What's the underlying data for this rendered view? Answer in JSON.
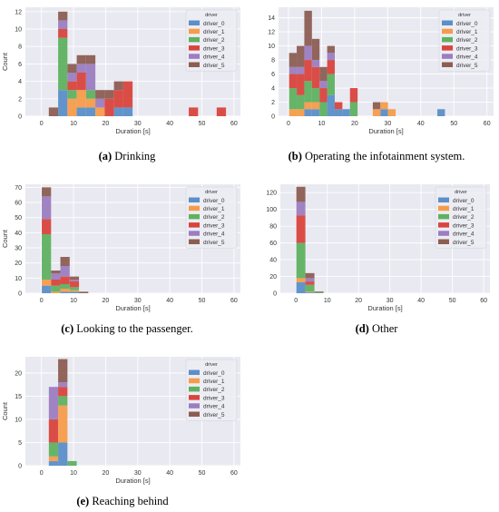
{
  "colors": {
    "driver_0": "#5b8fc8",
    "driver_1": "#f59c4a",
    "driver_2": "#5fb160",
    "driver_3": "#d9443c",
    "driver_4": "#9c7dc0",
    "driver_5": "#8c5e52",
    "plot_background": "#e9e9f1",
    "grid": "#ffffff"
  },
  "legend_title": "driver",
  "series_names": [
    "driver_0",
    "driver_1",
    "driver_2",
    "driver_3",
    "driver_4",
    "driver_5"
  ],
  "captions": [
    {
      "label": "(a)",
      "text": " Drinking"
    },
    {
      "label": "(b)",
      "text": " Operating the infotainment system."
    },
    {
      "label": "(c)",
      "text": " Looking to the passenger."
    },
    {
      "label": "(d)",
      "text": " Other"
    },
    {
      "label": "(e)",
      "text": " Reaching behind"
    }
  ],
  "chart_data": [
    {
      "type": "bar",
      "stacked": true,
      "xlabel": "Duration [s]",
      "ylabel": "Count",
      "xlim": [
        -5,
        62
      ],
      "ylim": [
        0,
        12.5
      ],
      "xticks": [
        0,
        10,
        20,
        30,
        40,
        50,
        60
      ],
      "yticks": [
        0,
        2,
        4,
        6,
        8,
        10,
        12
      ],
      "grid": true,
      "legend": "top-right",
      "bin_width": 2.9,
      "bin_starts": [
        2.3,
        5.2,
        8.1,
        11.0,
        13.9,
        16.8,
        19.7,
        22.6,
        25.5,
        45.9,
        54.6
      ],
      "series": [
        {
          "name": "driver_0",
          "values": [
            0,
            3,
            0,
            1,
            1,
            0,
            0,
            1,
            1,
            0,
            0
          ]
        },
        {
          "name": "driver_1",
          "values": [
            0,
            0,
            2,
            2,
            1,
            1,
            0,
            0,
            0,
            0,
            0
          ]
        },
        {
          "name": "driver_2",
          "values": [
            0,
            6,
            1,
            0,
            1,
            0,
            0,
            0,
            0,
            0,
            0
          ]
        },
        {
          "name": "driver_3",
          "values": [
            0,
            1,
            1,
            2,
            0,
            0,
            2,
            2,
            3,
            1,
            1
          ]
        },
        {
          "name": "driver_4",
          "values": [
            0,
            1,
            1,
            1,
            3,
            1,
            0,
            0,
            0,
            0,
            0
          ]
        },
        {
          "name": "driver_5",
          "values": [
            1,
            1,
            1,
            1,
            1,
            1,
            1,
            1,
            0,
            0,
            0
          ]
        }
      ]
    },
    {
      "type": "bar",
      "stacked": true,
      "xlabel": "Duration [s]",
      "ylabel": "",
      "xlim": [
        -3,
        62
      ],
      "ylim": [
        0,
        15.5
      ],
      "xticks": [
        0,
        10,
        20,
        30,
        40,
        50,
        60
      ],
      "yticks": [
        0,
        2,
        4,
        6,
        8,
        10,
        12,
        14
      ],
      "grid": true,
      "legend": "top-right",
      "bin_width": 2.3,
      "bin_starts": [
        0.2,
        2.5,
        4.8,
        7.1,
        9.4,
        11.7,
        14.0,
        16.3,
        18.6,
        20.9,
        25.5,
        27.8,
        30.1,
        45.0
      ],
      "series": [
        {
          "name": "driver_0",
          "values": [
            0,
            0,
            1,
            1,
            0,
            3,
            1,
            1,
            0,
            0,
            0,
            1,
            0,
            1
          ]
        },
        {
          "name": "driver_1",
          "values": [
            1,
            1,
            1,
            1,
            0,
            0,
            0,
            0,
            0,
            0,
            1,
            1,
            1,
            0
          ]
        },
        {
          "name": "driver_2",
          "values": [
            3,
            2,
            3,
            2,
            2,
            3,
            0,
            0,
            2,
            0,
            0,
            0,
            0,
            0
          ]
        },
        {
          "name": "driver_3",
          "values": [
            2,
            3,
            3,
            3,
            2,
            2,
            1,
            0,
            2,
            0,
            0,
            0,
            0,
            0
          ]
        },
        {
          "name": "driver_4",
          "values": [
            1,
            1,
            2,
            1,
            1,
            1,
            0,
            0,
            0,
            0,
            0,
            0,
            0,
            0
          ]
        },
        {
          "name": "driver_5",
          "values": [
            2,
            3,
            5,
            3,
            2,
            1,
            0,
            0,
            0,
            0,
            1,
            0,
            0,
            0
          ]
        }
      ]
    },
    {
      "type": "bar",
      "stacked": true,
      "xlabel": "Duration [s]",
      "ylabel": "Count",
      "xlim": [
        -5,
        62
      ],
      "ylim": [
        0,
        72
      ],
      "xticks": [
        0,
        10,
        20,
        30,
        40,
        50,
        60
      ],
      "yticks": [
        0,
        10,
        20,
        30,
        40,
        50,
        60,
        70
      ],
      "grid": true,
      "legend": "top-right",
      "bin_width": 2.9,
      "bin_starts": [
        0.1,
        3.0,
        5.9,
        8.8,
        11.7
      ],
      "series": [
        {
          "name": "driver_0",
          "values": [
            5,
            0,
            1,
            1,
            0
          ]
        },
        {
          "name": "driver_1",
          "values": [
            4,
            1,
            2,
            1,
            0
          ]
        },
        {
          "name": "driver_2",
          "values": [
            30,
            4,
            3,
            2,
            0
          ]
        },
        {
          "name": "driver_3",
          "values": [
            10,
            4,
            5,
            4,
            0
          ]
        },
        {
          "name": "driver_4",
          "values": [
            15,
            4,
            7,
            1,
            0
          ]
        },
        {
          "name": "driver_5",
          "values": [
            6,
            2,
            6,
            2,
            1
          ]
        }
      ]
    },
    {
      "type": "bar",
      "stacked": true,
      "xlabel": "Duration [s]",
      "ylabel": "",
      "xlim": [
        -5,
        62
      ],
      "ylim": [
        0,
        130
      ],
      "xticks": [
        0,
        10,
        20,
        30,
        40,
        50,
        60
      ],
      "yticks": [
        0,
        20,
        40,
        60,
        80,
        100,
        120
      ],
      "grid": true,
      "legend": "top-right",
      "bin_width": 2.9,
      "bin_starts": [
        0.1,
        3.0,
        5.9
      ],
      "series": [
        {
          "name": "driver_0",
          "values": [
            13,
            1,
            0
          ]
        },
        {
          "name": "driver_1",
          "values": [
            5,
            1,
            0
          ]
        },
        {
          "name": "driver_2",
          "values": [
            42,
            8,
            1
          ]
        },
        {
          "name": "driver_3",
          "values": [
            33,
            4,
            0
          ]
        },
        {
          "name": "driver_4",
          "values": [
            16,
            4,
            0
          ]
        },
        {
          "name": "driver_5",
          "values": [
            18,
            6,
            1
          ]
        }
      ]
    },
    {
      "type": "bar",
      "stacked": true,
      "xlabel": "Duration [s]",
      "ylabel": "Count",
      "xlim": [
        -5,
        62
      ],
      "ylim": [
        0,
        23.5
      ],
      "xticks": [
        0,
        10,
        20,
        30,
        40,
        50,
        60
      ],
      "yticks": [
        0,
        5,
        10,
        15,
        20
      ],
      "grid": true,
      "legend": "top-right",
      "bin_width": 2.9,
      "bin_starts": [
        2.3,
        5.2,
        8.1
      ],
      "series": [
        {
          "name": "driver_0",
          "values": [
            1,
            5,
            0
          ]
        },
        {
          "name": "driver_1",
          "values": [
            1,
            8,
            0
          ]
        },
        {
          "name": "driver_2",
          "values": [
            3,
            2,
            1
          ]
        },
        {
          "name": "driver_3",
          "values": [
            5,
            2,
            0
          ]
        },
        {
          "name": "driver_4",
          "values": [
            7,
            1,
            0
          ]
        },
        {
          "name": "driver_5",
          "values": [
            0,
            5,
            0
          ]
        }
      ]
    }
  ]
}
